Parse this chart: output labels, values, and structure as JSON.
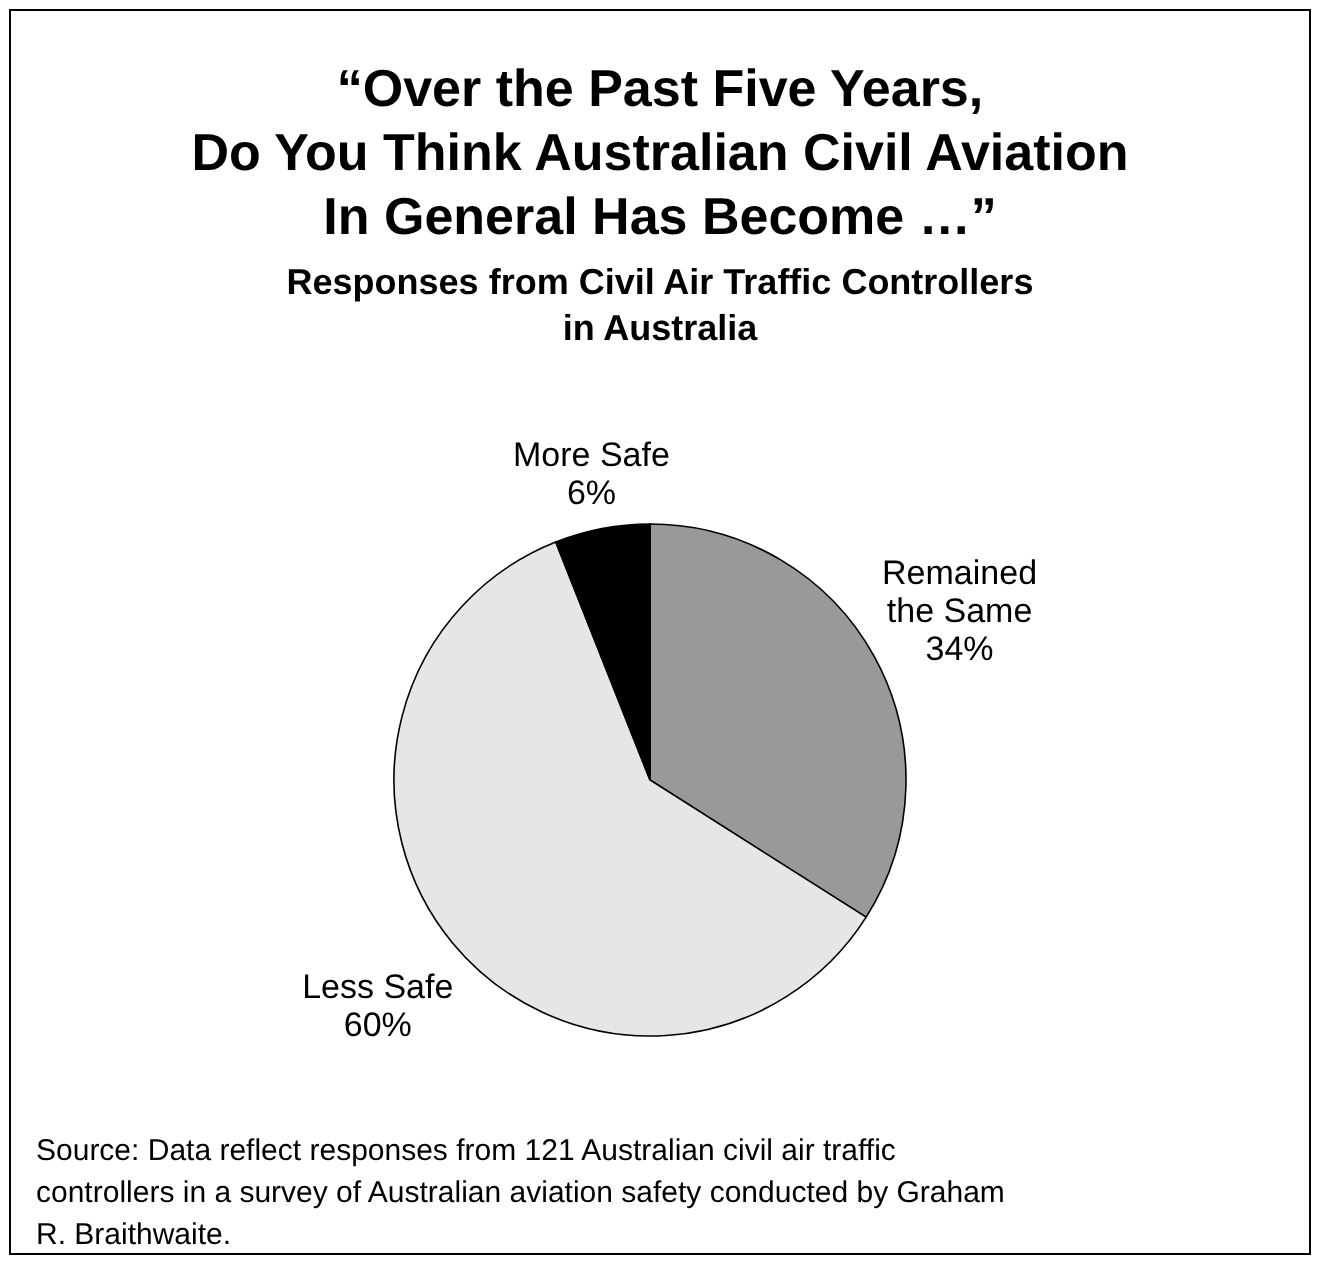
{
  "chart_data": {
    "type": "pie",
    "title": "“Over the Past Five Years,\nDo You Think Australian Civil Aviation\nIn General Has Become …”",
    "subtitle": "Responses from Civil Air Traffic Controllers\nin Australia",
    "categories": [
      "Remained the Same",
      "Less Safe",
      "More Safe"
    ],
    "values": [
      34,
      60,
      6
    ],
    "value_labels": [
      "34%",
      "60%",
      "6%"
    ],
    "colors": [
      "#999999",
      "#e6e6e6",
      "#000000"
    ],
    "annotations": [
      "Source: Data reflect responses from 121 Australian civil air traffic controllers in a survey of Australian aviation safety conducted by Graham R. Braithwaite."
    ]
  }
}
